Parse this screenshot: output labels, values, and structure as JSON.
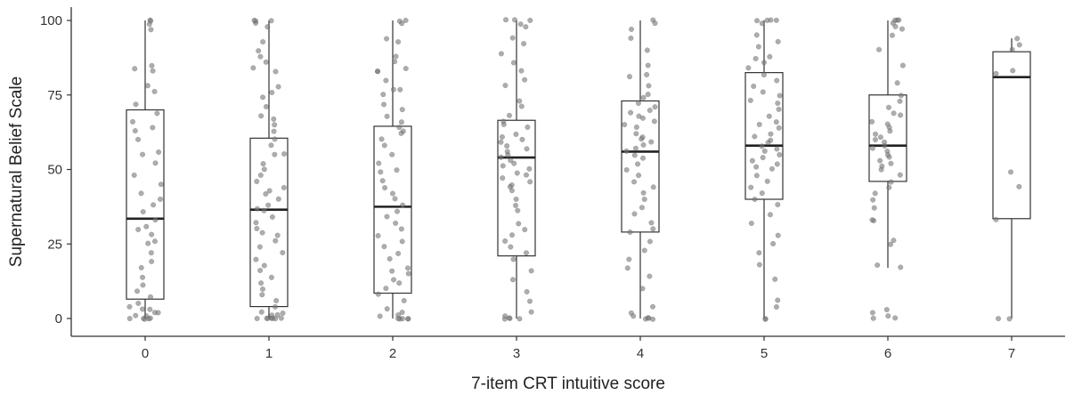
{
  "chart_data": {
    "type": "boxplot",
    "title": "",
    "xlabel": "7-item CRT intuitive score",
    "ylabel": "Supernatural Belief Scale",
    "categories": [
      "0",
      "1",
      "2",
      "3",
      "4",
      "5",
      "6",
      "7"
    ],
    "yticks": [
      "0",
      "25",
      "50",
      "75",
      "100"
    ],
    "ylim": [
      -5,
      105
    ],
    "grid": false,
    "legend": "none",
    "colors": {
      "points": "#777777",
      "box": "#333333",
      "median": "#222222",
      "axis": "#333333"
    },
    "boxes": [
      {
        "category": "0",
        "min": 0,
        "q1": 6.5,
        "median": 33.5,
        "q3": 70,
        "max": 100
      },
      {
        "category": "1",
        "min": 0,
        "q1": 4,
        "median": 36.5,
        "q3": 60.5,
        "max": 100
      },
      {
        "category": "2",
        "min": 0,
        "q1": 8.5,
        "median": 37.5,
        "q3": 64.5,
        "max": 100
      },
      {
        "category": "3",
        "min": 0,
        "q1": 21,
        "median": 54,
        "q3": 66.5,
        "max": 100
      },
      {
        "category": "4",
        "min": 0,
        "q1": 29,
        "median": 56,
        "q3": 73,
        "max": 100
      },
      {
        "category": "5",
        "min": 0,
        "q1": 40,
        "median": 58,
        "q3": 82.5,
        "max": 100
      },
      {
        "category": "6",
        "min": 17,
        "q1": 46,
        "median": 58,
        "q3": 75,
        "max": 100
      },
      {
        "category": "7",
        "min": 0,
        "q1": 33.5,
        "median": 81,
        "q3": 89.5,
        "max": 94
      }
    ],
    "points": [
      {
        "category": "0",
        "values": [
          100,
          99,
          97,
          84,
          85,
          83,
          76,
          78,
          72,
          69,
          66,
          64,
          60,
          56,
          55,
          52,
          48,
          42,
          40,
          38,
          36,
          33,
          31,
          28,
          25,
          22,
          19,
          17,
          14,
          11,
          9,
          7,
          5,
          3,
          2,
          1,
          0,
          0,
          0,
          0,
          0,
          1,
          2,
          4,
          3,
          26,
          30,
          45,
          63,
          100
        ]
      },
      {
        "category": "1",
        "values": [
          100,
          100,
          99,
          98,
          93,
          88,
          86,
          84,
          83,
          78,
          76,
          74,
          68,
          67,
          65,
          63,
          60,
          58,
          55,
          52,
          50,
          48,
          46,
          44,
          43,
          40,
          38,
          37,
          36,
          34,
          32,
          30,
          28,
          26,
          24,
          22,
          20,
          18,
          16,
          14,
          12,
          10,
          8,
          6,
          4,
          2,
          1,
          0,
          0,
          0,
          0,
          0,
          1,
          2,
          0,
          0,
          100,
          42,
          55,
          71,
          90,
          29
        ]
      },
      {
        "category": "2",
        "values": [
          100,
          99,
          93,
          94,
          88,
          86,
          84,
          83,
          80,
          77,
          77,
          75,
          72,
          70,
          68,
          66,
          64,
          63,
          62,
          60,
          58,
          55,
          52,
          50,
          46,
          44,
          42,
          40,
          38,
          36,
          34,
          32,
          30,
          28,
          26,
          24,
          22,
          20,
          17,
          16,
          13,
          12,
          10,
          8,
          6,
          3,
          1,
          0,
          0,
          0,
          0,
          1,
          2,
          0,
          100,
          83,
          49,
          15
        ]
      },
      {
        "category": "3",
        "values": [
          100,
          100,
          99,
          98,
          94,
          92,
          89,
          86,
          83,
          78,
          73,
          71,
          68,
          66,
          65,
          64,
          62,
          61,
          60,
          59,
          58,
          57,
          56,
          55,
          54,
          53,
          52,
          51,
          50,
          49,
          48,
          47,
          46,
          45,
          44,
          43,
          40,
          38,
          36,
          32,
          30,
          28,
          26,
          24,
          22,
          20,
          16,
          13,
          9,
          6,
          2,
          0,
          0,
          0,
          0,
          1,
          100,
          80
        ]
      },
      {
        "category": "4",
        "values": [
          100,
          99,
          97,
          94,
          90,
          85,
          82,
          78,
          75,
          74,
          72,
          71,
          70,
          68,
          67,
          66,
          65,
          64,
          62,
          61,
          60,
          59,
          58,
          57,
          56,
          55,
          54,
          52,
          50,
          48,
          46,
          44,
          42,
          40,
          37,
          35,
          32,
          29,
          26,
          23,
          20,
          17,
          14,
          10,
          4,
          2,
          1,
          0,
          0,
          0,
          0,
          81,
          69,
          30
        ]
      },
      {
        "category": "5",
        "values": [
          100,
          100,
          100,
          99,
          95,
          93,
          91,
          88,
          86,
          84,
          82,
          80,
          78,
          76,
          75,
          72,
          70,
          68,
          66,
          65,
          64,
          62,
          61,
          60,
          59,
          58,
          57,
          56,
          55,
          54,
          53,
          52,
          51,
          50,
          48,
          46,
          44,
          42,
          40,
          38,
          35,
          32,
          28,
          25,
          22,
          18,
          13,
          6,
          4,
          0,
          0,
          100,
          87,
          73
        ]
      },
      {
        "category": "6",
        "values": [
          100,
          100,
          99,
          98,
          97,
          95,
          90,
          85,
          79,
          75,
          73,
          71,
          69,
          68,
          66,
          65,
          64,
          62,
          61,
          60,
          59,
          58,
          57,
          56,
          55,
          54,
          53,
          52,
          51,
          50,
          48,
          46,
          44,
          42,
          40,
          37,
          33,
          33,
          26,
          25,
          18,
          17,
          3,
          2,
          1,
          0,
          0,
          100,
          63
        ]
      },
      {
        "category": "7",
        "values": [
          94,
          92,
          90,
          83,
          82,
          49,
          44,
          33,
          0,
          0
        ]
      }
    ]
  }
}
